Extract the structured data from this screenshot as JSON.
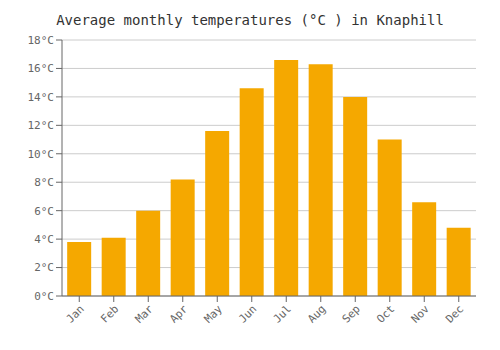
{
  "chart_data": {
    "type": "bar",
    "title": "Average monthly temperatures (°C ) in Knaphill",
    "categories": [
      "Jan",
      "Feb",
      "Mar",
      "Apr",
      "May",
      "Jun",
      "Jul",
      "Aug",
      "Sep",
      "Oct",
      "Nov",
      "Dec"
    ],
    "values": [
      3.8,
      4.1,
      6.0,
      8.2,
      11.6,
      14.6,
      16.6,
      16.3,
      14.0,
      11.0,
      6.6,
      4.8
    ],
    "color": "#F5A800",
    "ylim": [
      0,
      18
    ],
    "yticks": [
      {
        "value": 0,
        "label": "0°C"
      },
      {
        "value": 2,
        "label": "2°C"
      },
      {
        "value": 4,
        "label": "4°C"
      },
      {
        "value": 6,
        "label": "6°C"
      },
      {
        "value": 8,
        "label": "8°C"
      },
      {
        "value": 10,
        "label": "10°C"
      },
      {
        "value": 12,
        "label": "12°C"
      },
      {
        "value": 14,
        "label": "14°C"
      },
      {
        "value": 16,
        "label": "16°C"
      },
      {
        "value": 18,
        "label": "18°C"
      }
    ],
    "grid": true
  }
}
